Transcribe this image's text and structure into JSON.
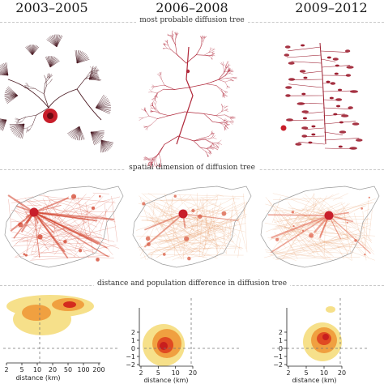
{
  "columns": [
    {
      "title": "2003–2005"
    },
    {
      "title": "2006–2008"
    },
    {
      "title": "2009–2012"
    }
  ],
  "sections": {
    "trees": "most probable diffusion tree",
    "maps": "spatial dimension of diffusion tree",
    "density": "distance and population difference in diffusion tree"
  },
  "density_plots": [
    {
      "xlabel": "distance (km)",
      "x_ticks": [
        "2",
        "5",
        "10",
        "20",
        "50",
        "100",
        "200"
      ],
      "y_ticks": []
    },
    {
      "xlabel": "distance (km)",
      "x_ticks": [
        "2",
        "5",
        "10",
        "20"
      ],
      "y_ticks": [
        "2",
        "1",
        "0",
        "−1",
        "−2"
      ]
    },
    {
      "xlabel": "distance (km)",
      "x_ticks": [
        "2",
        "5",
        "10",
        "20"
      ],
      "y_ticks": [
        "2",
        "1",
        "0",
        "−1",
        "−2"
      ]
    }
  ],
  "colors": {
    "tree_1": "#4a1a22",
    "tree_2": "#b0283a",
    "tree_3": "#9c1e30",
    "tree_hub": "#c81e2a",
    "map_outline": "#9a9a9a",
    "map_edges": "#e8a070",
    "map_edges_strong": "#d2402a",
    "density_low": "#f6e08a",
    "density_mid": "#f0a040",
    "density_high": "#d42a1e"
  }
}
